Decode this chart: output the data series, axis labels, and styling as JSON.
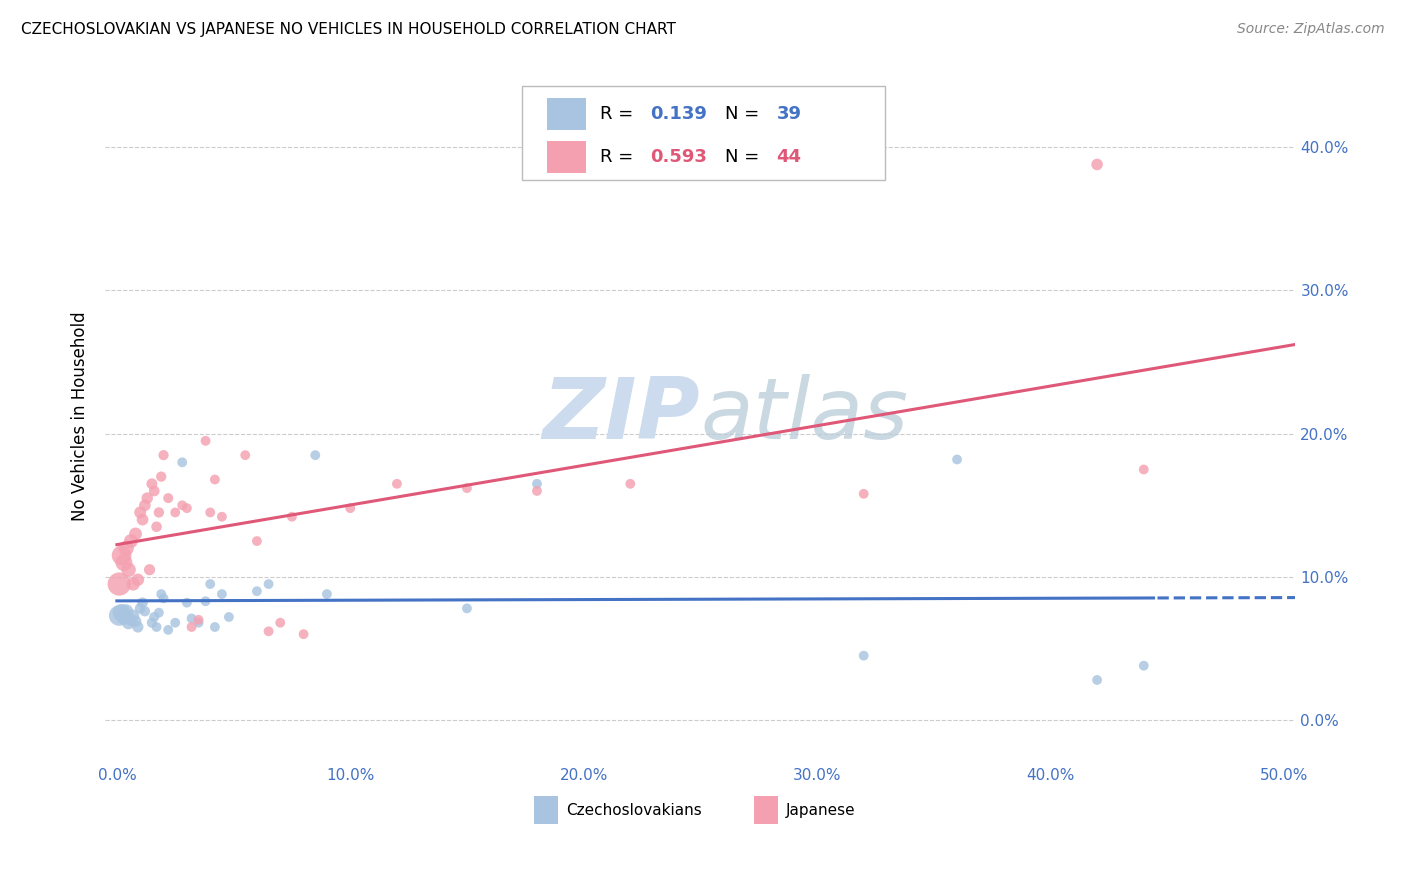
{
  "title": "CZECHOSLOVAKIAN VS JAPANESE NO VEHICLES IN HOUSEHOLD CORRELATION CHART",
  "source": "Source: ZipAtlas.com",
  "ylabel": "No Vehicles in Household",
  "xlim": [
    0.0,
    0.5
  ],
  "ylim": [
    -0.02,
    0.45
  ],
  "yticks": [
    0.0,
    0.1,
    0.2,
    0.3,
    0.4
  ],
  "ytick_labels": [
    "0.0%",
    "10.0%",
    "20.0%",
    "30.0%",
    "40.0%"
  ],
  "xticks": [
    0.0,
    0.1,
    0.2,
    0.3,
    0.4,
    0.5
  ],
  "xtick_labels": [
    "0.0%",
    "10.0%",
    "20.0%",
    "30.0%",
    "40.0%",
    "50.0%"
  ],
  "czech_R": "0.139",
  "czech_N": "39",
  "japanese_R": "0.593",
  "japanese_N": "44",
  "czech_color": "#a8c4e0",
  "japanese_color": "#f4a0b0",
  "czech_line_color": "#4472c4",
  "japanese_line_color": "#e05878",
  "watermark_zip_color": "#ccdcee",
  "watermark_atlas_color": "#b8ccd8",
  "background_color": "#ffffff",
  "czech_scatter": [
    [
      0.001,
      0.073
    ],
    [
      0.002,
      0.075
    ],
    [
      0.003,
      0.072
    ],
    [
      0.004,
      0.076
    ],
    [
      0.005,
      0.068
    ],
    [
      0.006,
      0.07
    ],
    [
      0.007,
      0.073
    ],
    [
      0.008,
      0.069
    ],
    [
      0.009,
      0.065
    ],
    [
      0.01,
      0.078
    ],
    [
      0.011,
      0.082
    ],
    [
      0.012,
      0.076
    ],
    [
      0.015,
      0.068
    ],
    [
      0.016,
      0.072
    ],
    [
      0.017,
      0.065
    ],
    [
      0.018,
      0.075
    ],
    [
      0.019,
      0.088
    ],
    [
      0.02,
      0.085
    ],
    [
      0.022,
      0.063
    ],
    [
      0.025,
      0.068
    ],
    [
      0.028,
      0.18
    ],
    [
      0.03,
      0.082
    ],
    [
      0.032,
      0.071
    ],
    [
      0.035,
      0.068
    ],
    [
      0.038,
      0.083
    ],
    [
      0.04,
      0.095
    ],
    [
      0.042,
      0.065
    ],
    [
      0.045,
      0.088
    ],
    [
      0.048,
      0.072
    ],
    [
      0.06,
      0.09
    ],
    [
      0.065,
      0.095
    ],
    [
      0.085,
      0.185
    ],
    [
      0.09,
      0.088
    ],
    [
      0.15,
      0.078
    ],
    [
      0.18,
      0.165
    ],
    [
      0.32,
      0.045
    ],
    [
      0.36,
      0.182
    ],
    [
      0.42,
      0.028
    ],
    [
      0.44,
      0.038
    ]
  ],
  "japanese_scatter": [
    [
      0.001,
      0.095
    ],
    [
      0.002,
      0.115
    ],
    [
      0.003,
      0.11
    ],
    [
      0.004,
      0.12
    ],
    [
      0.005,
      0.105
    ],
    [
      0.006,
      0.125
    ],
    [
      0.007,
      0.095
    ],
    [
      0.008,
      0.13
    ],
    [
      0.009,
      0.098
    ],
    [
      0.01,
      0.145
    ],
    [
      0.011,
      0.14
    ],
    [
      0.012,
      0.15
    ],
    [
      0.013,
      0.155
    ],
    [
      0.014,
      0.105
    ],
    [
      0.015,
      0.165
    ],
    [
      0.016,
      0.16
    ],
    [
      0.017,
      0.135
    ],
    [
      0.018,
      0.145
    ],
    [
      0.019,
      0.17
    ],
    [
      0.02,
      0.185
    ],
    [
      0.022,
      0.155
    ],
    [
      0.025,
      0.145
    ],
    [
      0.028,
      0.15
    ],
    [
      0.03,
      0.148
    ],
    [
      0.032,
      0.065
    ],
    [
      0.035,
      0.07
    ],
    [
      0.038,
      0.195
    ],
    [
      0.04,
      0.145
    ],
    [
      0.042,
      0.168
    ],
    [
      0.045,
      0.142
    ],
    [
      0.055,
      0.185
    ],
    [
      0.06,
      0.125
    ],
    [
      0.065,
      0.062
    ],
    [
      0.07,
      0.068
    ],
    [
      0.075,
      0.142
    ],
    [
      0.08,
      0.06
    ],
    [
      0.1,
      0.148
    ],
    [
      0.12,
      0.165
    ],
    [
      0.15,
      0.162
    ],
    [
      0.18,
      0.16
    ],
    [
      0.22,
      0.165
    ],
    [
      0.32,
      0.158
    ],
    [
      0.42,
      0.388
    ],
    [
      0.44,
      0.175
    ]
  ],
  "czech_sizes": [
    220,
    160,
    120,
    100,
    90,
    80,
    75,
    70,
    65,
    60,
    58,
    56,
    54,
    52,
    50,
    50,
    50,
    50,
    50,
    50,
    50,
    50,
    50,
    50,
    50,
    50,
    50,
    50,
    50,
    50,
    50,
    50,
    50,
    50,
    50,
    50,
    50,
    50,
    50
  ],
  "japanese_sizes": [
    280,
    200,
    150,
    120,
    110,
    100,
    90,
    85,
    80,
    75,
    72,
    70,
    68,
    65,
    62,
    60,
    58,
    56,
    55,
    54,
    52,
    50,
    50,
    50,
    50,
    50,
    50,
    50,
    50,
    50,
    50,
    50,
    50,
    50,
    50,
    50,
    50,
    50,
    50,
    50,
    50,
    50,
    70,
    50
  ]
}
